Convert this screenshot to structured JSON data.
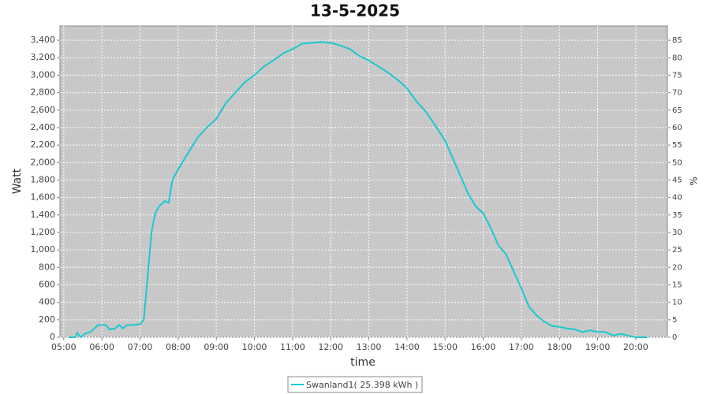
{
  "chart_data": {
    "type": "line",
    "title": "13-5-2025",
    "x_label": "time",
    "y_label": "Watt",
    "y2_label": "%",
    "series": [
      {
        "name": "Swanland1( 25.398 kWh )",
        "color": "#1cc8d0",
        "x": [
          5.15,
          5.3,
          5.35,
          5.45,
          5.55,
          5.7,
          5.8,
          5.9,
          6.1,
          6.2,
          6.35,
          6.45,
          6.55,
          6.65,
          6.8,
          7.0,
          7.1,
          7.2,
          7.3,
          7.4,
          7.5,
          7.65,
          7.75,
          7.85,
          8.0,
          8.25,
          8.5,
          8.75,
          9.0,
          9.25,
          9.5,
          9.75,
          10.0,
          10.25,
          10.5,
          10.75,
          11.0,
          11.25,
          11.5,
          11.75,
          12.0,
          12.25,
          12.5,
          12.75,
          13.0,
          13.25,
          13.5,
          13.75,
          14.0,
          14.25,
          14.5,
          14.75,
          15.0,
          15.2,
          15.4,
          15.6,
          15.8,
          16.0,
          16.2,
          16.4,
          16.6,
          16.8,
          17.0,
          17.2,
          17.4,
          17.6,
          17.8,
          18.0,
          18.2,
          18.4,
          18.6,
          18.8,
          19.0,
          19.2,
          19.4,
          19.6,
          19.8,
          20.0,
          20.3
        ],
        "values": [
          0,
          0,
          50,
          0,
          40,
          60,
          100,
          140,
          140,
          90,
          100,
          140,
          100,
          140,
          140,
          150,
          200,
          700,
          1200,
          1420,
          1500,
          1560,
          1540,
          1800,
          1920,
          2100,
          2280,
          2400,
          2500,
          2680,
          2800,
          2920,
          3000,
          3100,
          3170,
          3250,
          3300,
          3360,
          3370,
          3380,
          3370,
          3340,
          3300,
          3220,
          3170,
          3100,
          3030,
          2950,
          2850,
          2700,
          2580,
          2420,
          2250,
          2050,
          1850,
          1650,
          1500,
          1420,
          1250,
          1050,
          950,
          750,
          560,
          350,
          250,
          180,
          130,
          120,
          100,
          90,
          60,
          80,
          60,
          60,
          20,
          40,
          20,
          0,
          0
        ]
      }
    ],
    "xlim": [
      4.9,
      20.83
    ],
    "xticks": [
      {
        "value": 5,
        "label": "05:00"
      },
      {
        "value": 6,
        "label": "06:00"
      },
      {
        "value": 7,
        "label": "07:00"
      },
      {
        "value": 8,
        "label": "08:00"
      },
      {
        "value": 9,
        "label": "09:00"
      },
      {
        "value": 10,
        "label": "10:00"
      },
      {
        "value": 11,
        "label": "11:00"
      },
      {
        "value": 12,
        "label": "12:00"
      },
      {
        "value": 13,
        "label": "13:00"
      },
      {
        "value": 14,
        "label": "14:00"
      },
      {
        "value": 15,
        "label": "15:00"
      },
      {
        "value": 16,
        "label": "16:00"
      },
      {
        "value": 17,
        "label": "17:00"
      },
      {
        "value": 18,
        "label": "18:00"
      },
      {
        "value": 19,
        "label": "19:00"
      },
      {
        "value": 20,
        "label": "20:00"
      }
    ],
    "ylim": [
      0,
      3563
    ],
    "yticks": [
      0,
      200,
      400,
      600,
      800,
      {
        "value": 1000,
        "label": "1,000"
      },
      {
        "value": 1200,
        "label": "1,200"
      },
      {
        "value": 1400,
        "label": "1,400"
      },
      {
        "value": 1600,
        "label": "1,600"
      },
      {
        "value": 1800,
        "label": "1,800"
      },
      {
        "value": 2000,
        "label": "2,000"
      },
      {
        "value": 2200,
        "label": "2,200"
      },
      {
        "value": 2400,
        "label": "2,400"
      },
      {
        "value": 2600,
        "label": "2,600"
      },
      {
        "value": 2800,
        "label": "2,800"
      },
      {
        "value": 3000,
        "label": "3,000"
      },
      {
        "value": 3200,
        "label": "3,200"
      },
      {
        "value": 3400,
        "label": "3,400"
      }
    ],
    "y2lim": [
      0,
      89.08
    ],
    "y2ticks": [
      0,
      5,
      10,
      15,
      20,
      25,
      30,
      35,
      40,
      45,
      50,
      55,
      60,
      65,
      70,
      75,
      80,
      85
    ],
    "grid": true
  }
}
